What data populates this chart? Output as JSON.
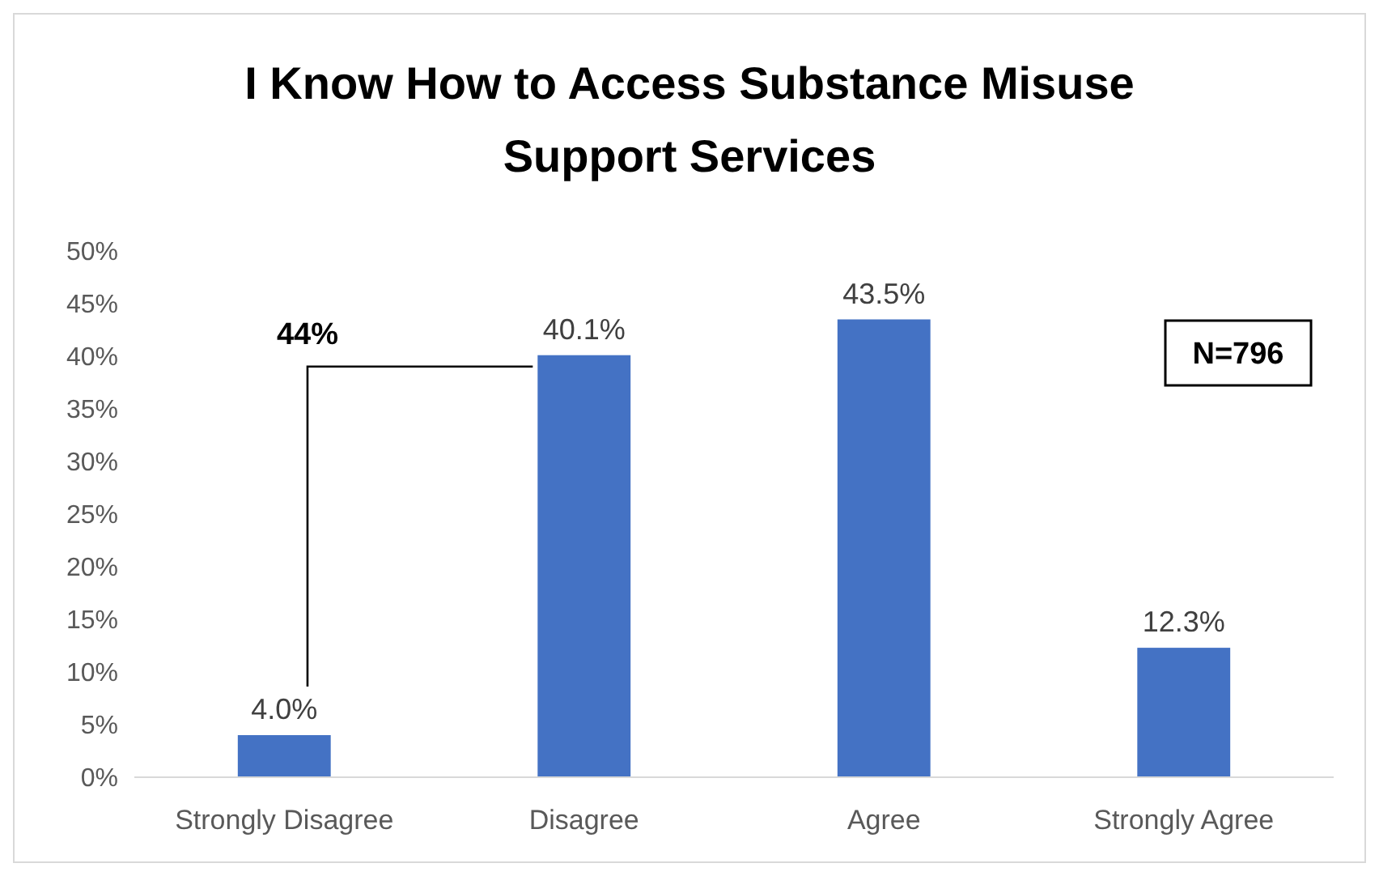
{
  "chart_data": {
    "type": "bar",
    "title": "I Know How to Access Substance Misuse Support Services",
    "categories": [
      "Strongly Disagree",
      "Disagree",
      "Agree",
      "Strongly Agree"
    ],
    "values": [
      4.0,
      40.1,
      43.5,
      12.3
    ],
    "value_labels": [
      "4.0%",
      "40.1%",
      "43.5%",
      "12.3%"
    ],
    "color": "#4472c4",
    "ylim": [
      0,
      50
    ],
    "yticks": [
      {
        "value": 0,
        "label": "0%"
      },
      {
        "value": 5,
        "label": "5%"
      },
      {
        "value": 10,
        "label": "10%"
      },
      {
        "value": 15,
        "label": "15%"
      },
      {
        "value": 20,
        "label": "20%"
      },
      {
        "value": 25,
        "label": "25%"
      },
      {
        "value": 30,
        "label": "30%"
      },
      {
        "value": 35,
        "label": "35%"
      },
      {
        "value": 40,
        "label": "40%"
      },
      {
        "value": 45,
        "label": "45%"
      },
      {
        "value": 50,
        "label": "50%"
      }
    ],
    "annotations": [
      "44%",
      "N=796"
    ],
    "grid": false
  }
}
